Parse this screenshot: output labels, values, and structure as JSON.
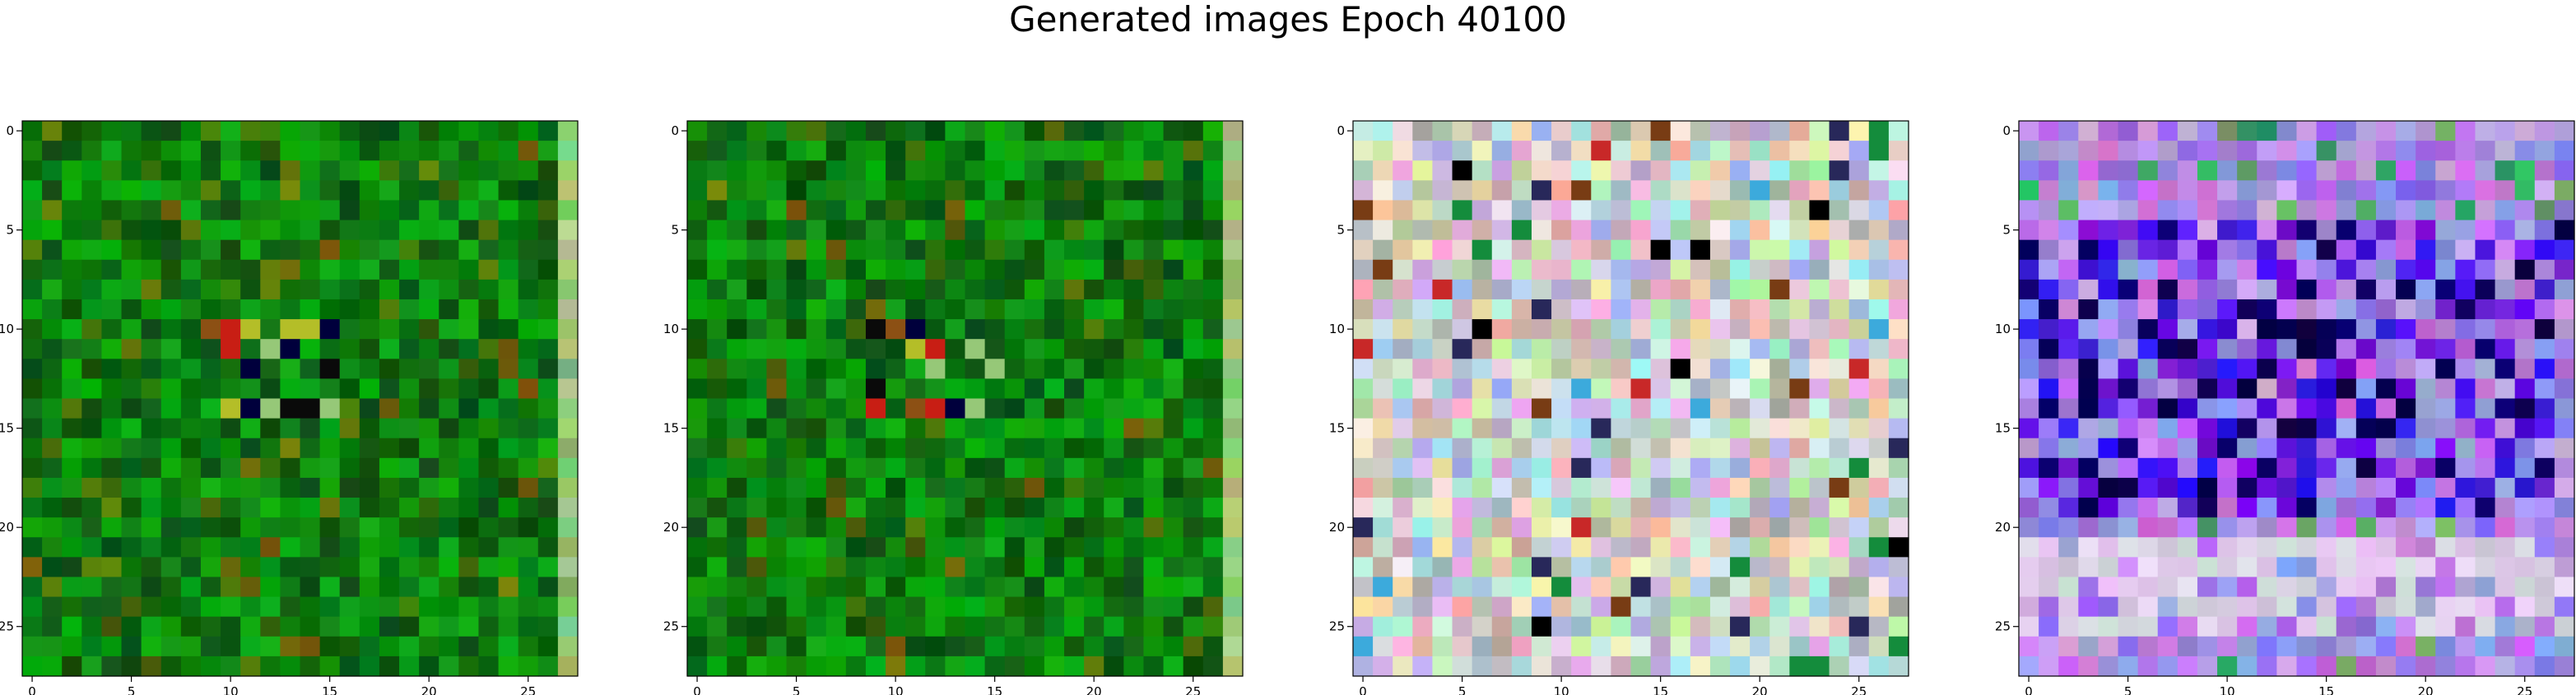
{
  "figure": {
    "title": "Generated images Epoch 40100"
  },
  "chart_data": [
    {
      "type": "heatmap",
      "palette": "green",
      "xticks": [
        "0",
        "5",
        "10",
        "15",
        "20",
        "25"
      ],
      "yticks": [
        "0",
        "5",
        "10",
        "15",
        "20",
        "25"
      ],
      "xlim": [
        -0.5,
        27.5
      ],
      "ylim": [
        27.5,
        -0.5
      ]
    },
    {
      "type": "heatmap",
      "palette": "green",
      "xticks": [
        "0",
        "5",
        "10",
        "15",
        "20",
        "25"
      ],
      "yticks": [
        "0",
        "5",
        "10",
        "15",
        "20",
        "25"
      ],
      "xlim": [
        -0.5,
        27.5
      ],
      "ylim": [
        27.5,
        -0.5
      ]
    },
    {
      "type": "heatmap",
      "palette": "pastel",
      "xticks": [
        "0",
        "5",
        "10",
        "15",
        "20",
        "25"
      ],
      "yticks": [
        "0",
        "5",
        "10",
        "15",
        "20",
        "25"
      ],
      "xlim": [
        -0.5,
        27.5
      ],
      "ylim": [
        27.5,
        -0.5
      ]
    },
    {
      "type": "heatmap",
      "palette": "violet",
      "xticks": [
        "0",
        "5",
        "10",
        "15",
        "20",
        "25"
      ],
      "yticks": [
        "0",
        "5",
        "10",
        "15",
        "20",
        "25"
      ],
      "xlim": [
        -0.5,
        27.5
      ],
      "ylim": [
        27.5,
        -0.5
      ]
    }
  ]
}
